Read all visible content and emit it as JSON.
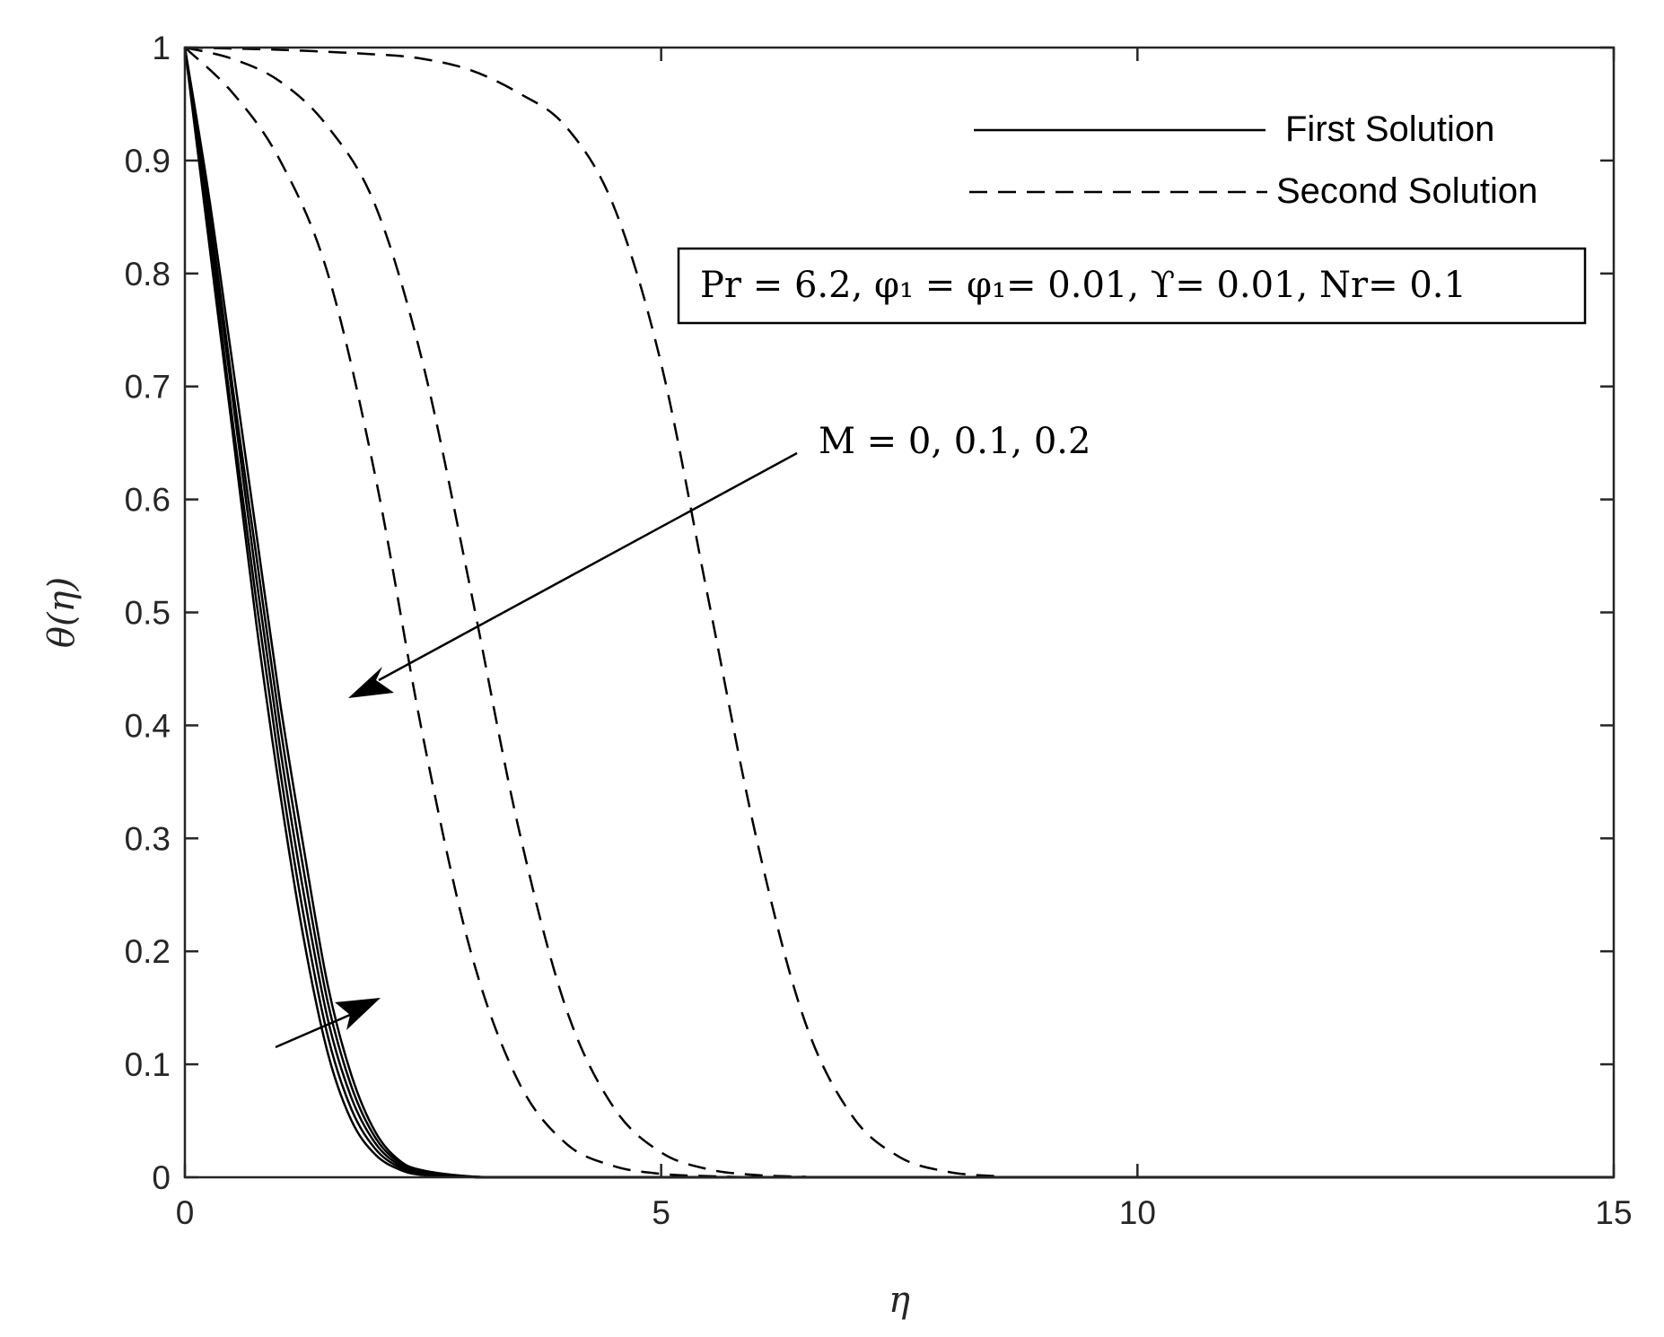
{
  "chart_data": {
    "type": "line",
    "title": "",
    "xlabel": "η",
    "ylabel": "θ(η)",
    "xlim": [
      0,
      15
    ],
    "ylim": [
      0,
      1
    ],
    "xticks": [
      0,
      5,
      10,
      15
    ],
    "xtick_labels": [
      "0",
      "5",
      "10",
      "15"
    ],
    "yticks": [
      0,
      0.1,
      0.2,
      0.3,
      0.4,
      0.5,
      0.6,
      0.7,
      0.8,
      0.9,
      1
    ],
    "ytick_labels": [
      "0",
      "0.1",
      "0.2",
      "0.3",
      "0.4",
      "0.5",
      "0.6",
      "0.7",
      "0.8",
      "0.9",
      "1"
    ],
    "grid": false,
    "legend_position": "top-right",
    "legend": [
      {
        "label": "First Solution",
        "style": "solid"
      },
      {
        "label": "Second Solution",
        "style": "dashed"
      }
    ],
    "parameter_box": "Pr = 6.2, φ₁ = φ₁= 0.01, ϒ= 0.01, Nr= 0.1",
    "annotation_M": "M = 0, 0.1, 0.2",
    "line_color": "#000000",
    "series": [
      {
        "style": "solid",
        "x": [
          0,
          0.25,
          0.5,
          0.75,
          1.0,
          1.25,
          1.5,
          1.75,
          2.0,
          2.25,
          2.5,
          3.0,
          3.5,
          4.0,
          15
        ],
        "y": [
          1,
          0.83,
          0.66,
          0.49,
          0.34,
          0.21,
          0.11,
          0.05,
          0.02,
          0.007,
          0.002,
          0.0003,
          0.0,
          0.0,
          0.0
        ]
      },
      {
        "style": "solid",
        "x": [
          0,
          0.25,
          0.5,
          0.75,
          1.0,
          1.25,
          1.5,
          1.75,
          2.0,
          2.25,
          2.5,
          3.0,
          3.5,
          4.0,
          15
        ],
        "y": [
          1,
          0.84,
          0.67,
          0.51,
          0.36,
          0.23,
          0.125,
          0.06,
          0.025,
          0.009,
          0.003,
          0.0004,
          0.0,
          0.0,
          0.0
        ]
      },
      {
        "style": "solid",
        "x": [
          0,
          0.25,
          0.5,
          0.75,
          1.0,
          1.25,
          1.5,
          1.75,
          2.0,
          2.25,
          2.5,
          3.0,
          3.5,
          4.0,
          15
        ],
        "y": [
          1,
          0.85,
          0.69,
          0.53,
          0.38,
          0.25,
          0.14,
          0.07,
          0.03,
          0.011,
          0.004,
          0.0005,
          0.0,
          0.0,
          0.0
        ]
      },
      {
        "style": "solid",
        "x": [
          0,
          0.25,
          0.5,
          0.75,
          1.0,
          1.25,
          1.5,
          1.75,
          2.0,
          2.25,
          2.5,
          3.0,
          3.5,
          4.0,
          15
        ],
        "y": [
          1,
          0.86,
          0.7,
          0.55,
          0.4,
          0.27,
          0.155,
          0.08,
          0.035,
          0.013,
          0.005,
          0.0006,
          0.0,
          0.0,
          0.0
        ]
      },
      {
        "style": "solid",
        "x": [
          0,
          0.25,
          0.5,
          0.75,
          1.0,
          1.25,
          1.5,
          1.75,
          2.0,
          2.25,
          2.5,
          3.0,
          3.5,
          4.0,
          15
        ],
        "y": [
          1,
          0.87,
          0.72,
          0.57,
          0.42,
          0.29,
          0.17,
          0.09,
          0.04,
          0.015,
          0.006,
          0.0008,
          0.0,
          0.0,
          0.0
        ]
      },
      {
        "style": "dashed",
        "x": [
          0,
          0.5,
          1.0,
          1.5,
          2.0,
          2.5,
          3.0,
          3.5,
          4.0,
          4.5,
          5.0,
          5.5,
          6.0,
          6.5,
          15
        ],
        "y": [
          1,
          0.96,
          0.9,
          0.8,
          0.62,
          0.39,
          0.2,
          0.085,
          0.03,
          0.01,
          0.003,
          0.001,
          0.0,
          0.0,
          0.0
        ]
      },
      {
        "style": "dashed",
        "x": [
          0,
          0.5,
          1.0,
          1.5,
          2.0,
          2.5,
          3.0,
          3.5,
          4.0,
          4.5,
          5.0,
          5.5,
          6.0,
          6.5,
          7.0,
          15
        ],
        "y": [
          1,
          0.99,
          0.97,
          0.93,
          0.86,
          0.72,
          0.52,
          0.31,
          0.15,
          0.062,
          0.022,
          0.007,
          0.002,
          0.0005,
          0.0,
          0.0
        ]
      },
      {
        "style": "dashed",
        "x": [
          0,
          1.0,
          2.0,
          2.5,
          3.0,
          3.5,
          4.0,
          4.5,
          5.0,
          5.5,
          6.0,
          6.5,
          7.0,
          7.5,
          8.0,
          8.5,
          9.0,
          15
        ],
        "y": [
          1,
          0.998,
          0.994,
          0.99,
          0.98,
          0.96,
          0.93,
          0.86,
          0.72,
          0.51,
          0.3,
          0.14,
          0.055,
          0.018,
          0.005,
          0.001,
          0.0,
          0.0
        ]
      }
    ]
  }
}
